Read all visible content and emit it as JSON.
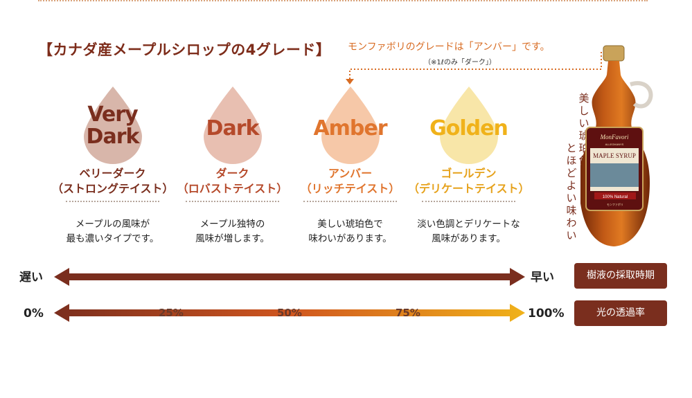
{
  "heading": "【カナダ産メープルシロップの4グレード】",
  "note": "モンファボリのグレードは「アンバー」です。",
  "subnote": "（※1ℓのみ「ダーク」）",
  "grades": [
    {
      "word_line1": "Very",
      "word_line2": "Dark",
      "name_line1": "ベリーダーク",
      "name_line2": "（ストロングテイスト）",
      "desc_line1": "メープルの風味が",
      "desc_line2": "最も濃いタイプです。",
      "drop_color": "#d8b6aa",
      "word_color": "#7a2e1e",
      "name_color": "#7a2e1e"
    },
    {
      "word_line1": "Dark",
      "word_line2": "",
      "name_line1": "ダーク",
      "name_line2": "（ロバストテイスト）",
      "desc_line1": "メープル独特の",
      "desc_line2": "風味が増します。",
      "drop_color": "#e8bfb1",
      "word_color": "#b5492a",
      "name_color": "#b5492a"
    },
    {
      "word_line1": "Amber",
      "word_line2": "",
      "name_line1": "アンバー",
      "name_line2": "（リッチテイスト）",
      "desc_line1": "美しい琥珀色で",
      "desc_line2": "味わいがあります。",
      "drop_color": "#f6c8a8",
      "word_color": "#e0752e",
      "name_color": "#e0752e"
    },
    {
      "word_line1": "Golden",
      "word_line2": "",
      "name_line1": "ゴールデン",
      "name_line2": "（デリケートテイスト）",
      "desc_line1": "淡い色調とデリケートな",
      "desc_line2": "風味があります。",
      "drop_color": "#f8e6a8",
      "word_color": "#f0b21a",
      "name_color": "#e6a21c"
    }
  ],
  "harvest_row": {
    "left": "遅い",
    "right": "早い",
    "badge": "樹液の採取時期"
  },
  "light_row": {
    "left": "0%",
    "right": "100%",
    "badge": "光の透過率",
    "ticks": [
      "25%",
      "50%",
      "75%"
    ]
  },
  "bottle": {
    "brand": "MonFavori",
    "sub": "ALLEGHANYS",
    "product": "MAPLE SYRUP",
    "natural": "100% Natural",
    "jp": "モンファボリ"
  },
  "vertical_caption_col1": [
    "美",
    "し",
    "い",
    "琥",
    "珀",
    "色"
  ],
  "vertical_caption_col2": [
    "と",
    "ほ",
    "ど",
    "よ",
    "い",
    "味",
    "わ",
    "い"
  ],
  "colors": {
    "heading": "#7d2c1a",
    "accent_orange": "#d86c23",
    "arrow_dark": "#7a2e1e",
    "badge_bg": "#7a2e1e"
  }
}
